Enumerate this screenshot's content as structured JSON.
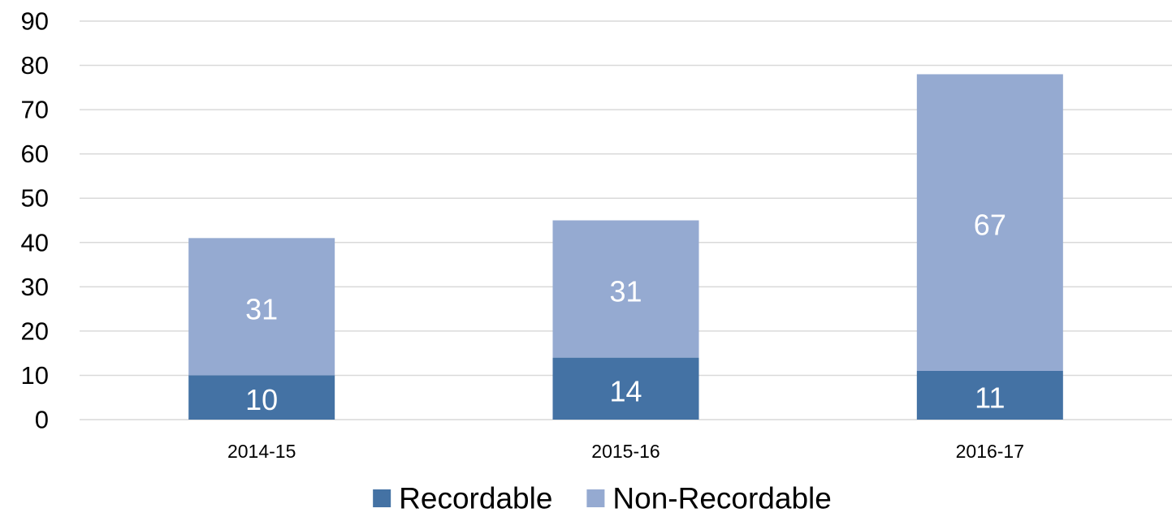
{
  "chart_data": {
    "type": "bar",
    "stacked": true,
    "categories": [
      "2014-15",
      "2015-16",
      "2016-17"
    ],
    "series": [
      {
        "name": "Recordable",
        "values": [
          10,
          14,
          11
        ],
        "color": "#4472A4"
      },
      {
        "name": "Non-Recordable",
        "values": [
          31,
          31,
          67
        ],
        "color": "#95AAD1"
      }
    ],
    "ylim": [
      0,
      90
    ],
    "yticks": [
      0,
      10,
      20,
      30,
      40,
      50,
      60,
      70,
      80,
      90
    ],
    "grid": true,
    "legend_position": "bottom",
    "title": "",
    "xlabel": "",
    "ylabel": ""
  },
  "colors": {
    "gridline": "#D9D9D9",
    "axis_line": "#D9D9D9",
    "data_label": "#FFFFFF"
  }
}
